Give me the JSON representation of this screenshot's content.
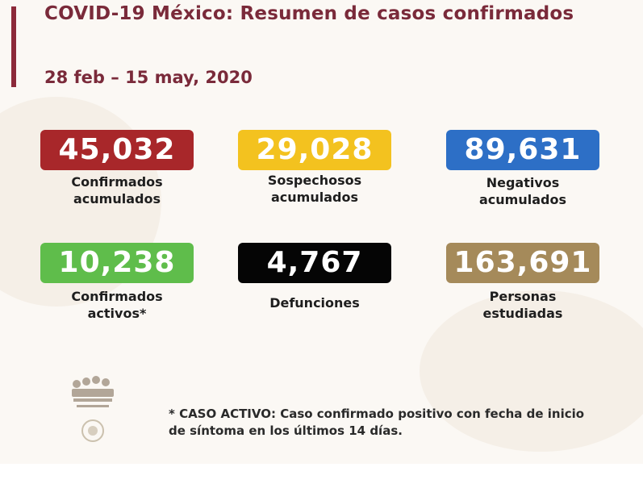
{
  "header": {
    "title": "COVID-19 México: Resumen de casos confirmados",
    "date_range": "28 feb – 15 may, 2020"
  },
  "stats": [
    {
      "value": "45,032",
      "label_line1": "Confirmados",
      "label_line2": "acumulados",
      "color": "#a8272a"
    },
    {
      "value": "29,028",
      "label_line1": "Sospechosos",
      "label_line2": "acumulados",
      "color": "#f3c21f"
    },
    {
      "value": "89,631",
      "label_line1": "Negativos",
      "label_line2": "acumulados",
      "color": "#2d6fc6"
    },
    {
      "value": "10,238",
      "label_line1": "Confirmados",
      "label_line2": "activos*",
      "color": "#5fbd4b"
    },
    {
      "value": "4,767",
      "label_line1": "Defunciones",
      "label_line2": "",
      "color": "#050505"
    },
    {
      "value": "163,691",
      "label_line1": "Personas",
      "label_line2": "estudiadas",
      "color": "#a58a5a"
    }
  ],
  "footnote": {
    "line1": "* CASO ACTIVO: Caso confirmado positivo con fecha de inicio",
    "line2": "de síntoma en los últimos 14 días."
  },
  "colors": {
    "title": "#7a2a3a",
    "accent_bar": "#8c2a3a"
  }
}
